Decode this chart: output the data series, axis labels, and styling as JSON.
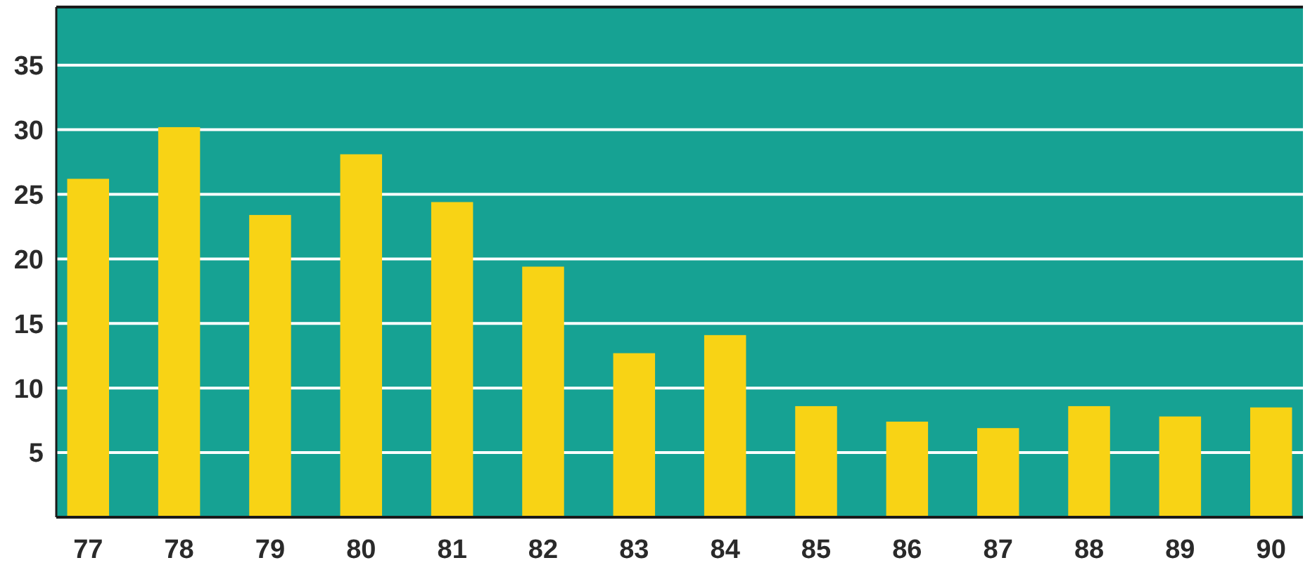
{
  "chart_data": {
    "type": "bar",
    "categories": [
      "77",
      "78",
      "79",
      "80",
      "81",
      "82",
      "83",
      "84",
      "85",
      "86",
      "87",
      "88",
      "89",
      "90"
    ],
    "values": [
      26.2,
      30.2,
      23.4,
      28.1,
      24.4,
      19.4,
      12.7,
      14.1,
      8.6,
      7.4,
      6.9,
      8.6,
      7.8,
      8.5
    ],
    "color": "#f8d315",
    "ylim": [
      0,
      39.5
    ],
    "yticks": [
      5,
      10,
      15,
      20,
      25,
      30,
      35
    ],
    "grid": "y"
  }
}
